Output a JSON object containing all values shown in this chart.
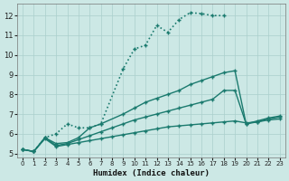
{
  "xlabel": "Humidex (Indice chaleur)",
  "ylabel": "",
  "bg_color": "#cce8e5",
  "grid_color": "#aacfcc",
  "line_color": "#1a7a6e",
  "xlim": [
    -0.5,
    23.5
  ],
  "ylim": [
    4.8,
    12.6
  ],
  "yticks": [
    5,
    6,
    7,
    8,
    9,
    10,
    11,
    12
  ],
  "xticks": [
    0,
    1,
    2,
    3,
    4,
    5,
    6,
    7,
    8,
    9,
    10,
    11,
    12,
    13,
    14,
    15,
    16,
    17,
    18,
    19,
    20,
    21,
    22,
    23
  ],
  "lines": [
    {
      "x": [
        0,
        1,
        2,
        3,
        4,
        5,
        6,
        7,
        9,
        10,
        11,
        12,
        13,
        14,
        15,
        16,
        17,
        18
      ],
      "y": [
        5.2,
        5.1,
        5.8,
        6.0,
        6.5,
        6.3,
        6.3,
        6.5,
        9.3,
        10.3,
        10.5,
        11.5,
        11.15,
        11.8,
        12.15,
        12.1,
        12.0,
        12.0
      ],
      "style": "dotted",
      "marker": "+"
    },
    {
      "x": [
        0,
        1,
        2,
        3,
        4,
        5,
        6,
        7,
        9,
        10,
        11,
        12,
        13,
        14,
        15,
        16,
        17,
        18,
        19,
        20,
        21,
        22,
        23
      ],
      "y": [
        5.2,
        5.1,
        5.8,
        5.5,
        5.55,
        5.8,
        6.3,
        6.5,
        7.0,
        7.3,
        7.6,
        7.8,
        8.0,
        8.2,
        8.5,
        8.7,
        8.9,
        9.1,
        9.2,
        6.5,
        6.65,
        6.8,
        6.9
      ],
      "style": "solid",
      "marker": "+"
    },
    {
      "x": [
        0,
        1,
        2,
        3,
        4,
        5,
        6,
        7,
        8,
        9,
        10,
        11,
        12,
        13,
        14,
        15,
        16,
        17,
        18,
        19,
        20,
        21,
        22,
        23
      ],
      "y": [
        5.2,
        5.1,
        5.8,
        5.4,
        5.5,
        5.7,
        5.9,
        6.1,
        6.3,
        6.5,
        6.7,
        6.85,
        7.0,
        7.15,
        7.3,
        7.45,
        7.6,
        7.75,
        8.2,
        8.2,
        6.5,
        6.6,
        6.75,
        6.85
      ],
      "style": "solid",
      "marker": "+"
    },
    {
      "x": [
        0,
        1,
        2,
        3,
        4,
        5,
        6,
        7,
        8,
        9,
        10,
        11,
        12,
        13,
        14,
        15,
        16,
        17,
        18,
        19,
        20,
        21,
        22,
        23
      ],
      "y": [
        5.2,
        5.1,
        5.75,
        5.35,
        5.45,
        5.55,
        5.65,
        5.75,
        5.85,
        5.95,
        6.05,
        6.15,
        6.25,
        6.35,
        6.4,
        6.45,
        6.5,
        6.55,
        6.6,
        6.65,
        6.55,
        6.6,
        6.7,
        6.75
      ],
      "style": "solid",
      "marker": "+"
    }
  ]
}
